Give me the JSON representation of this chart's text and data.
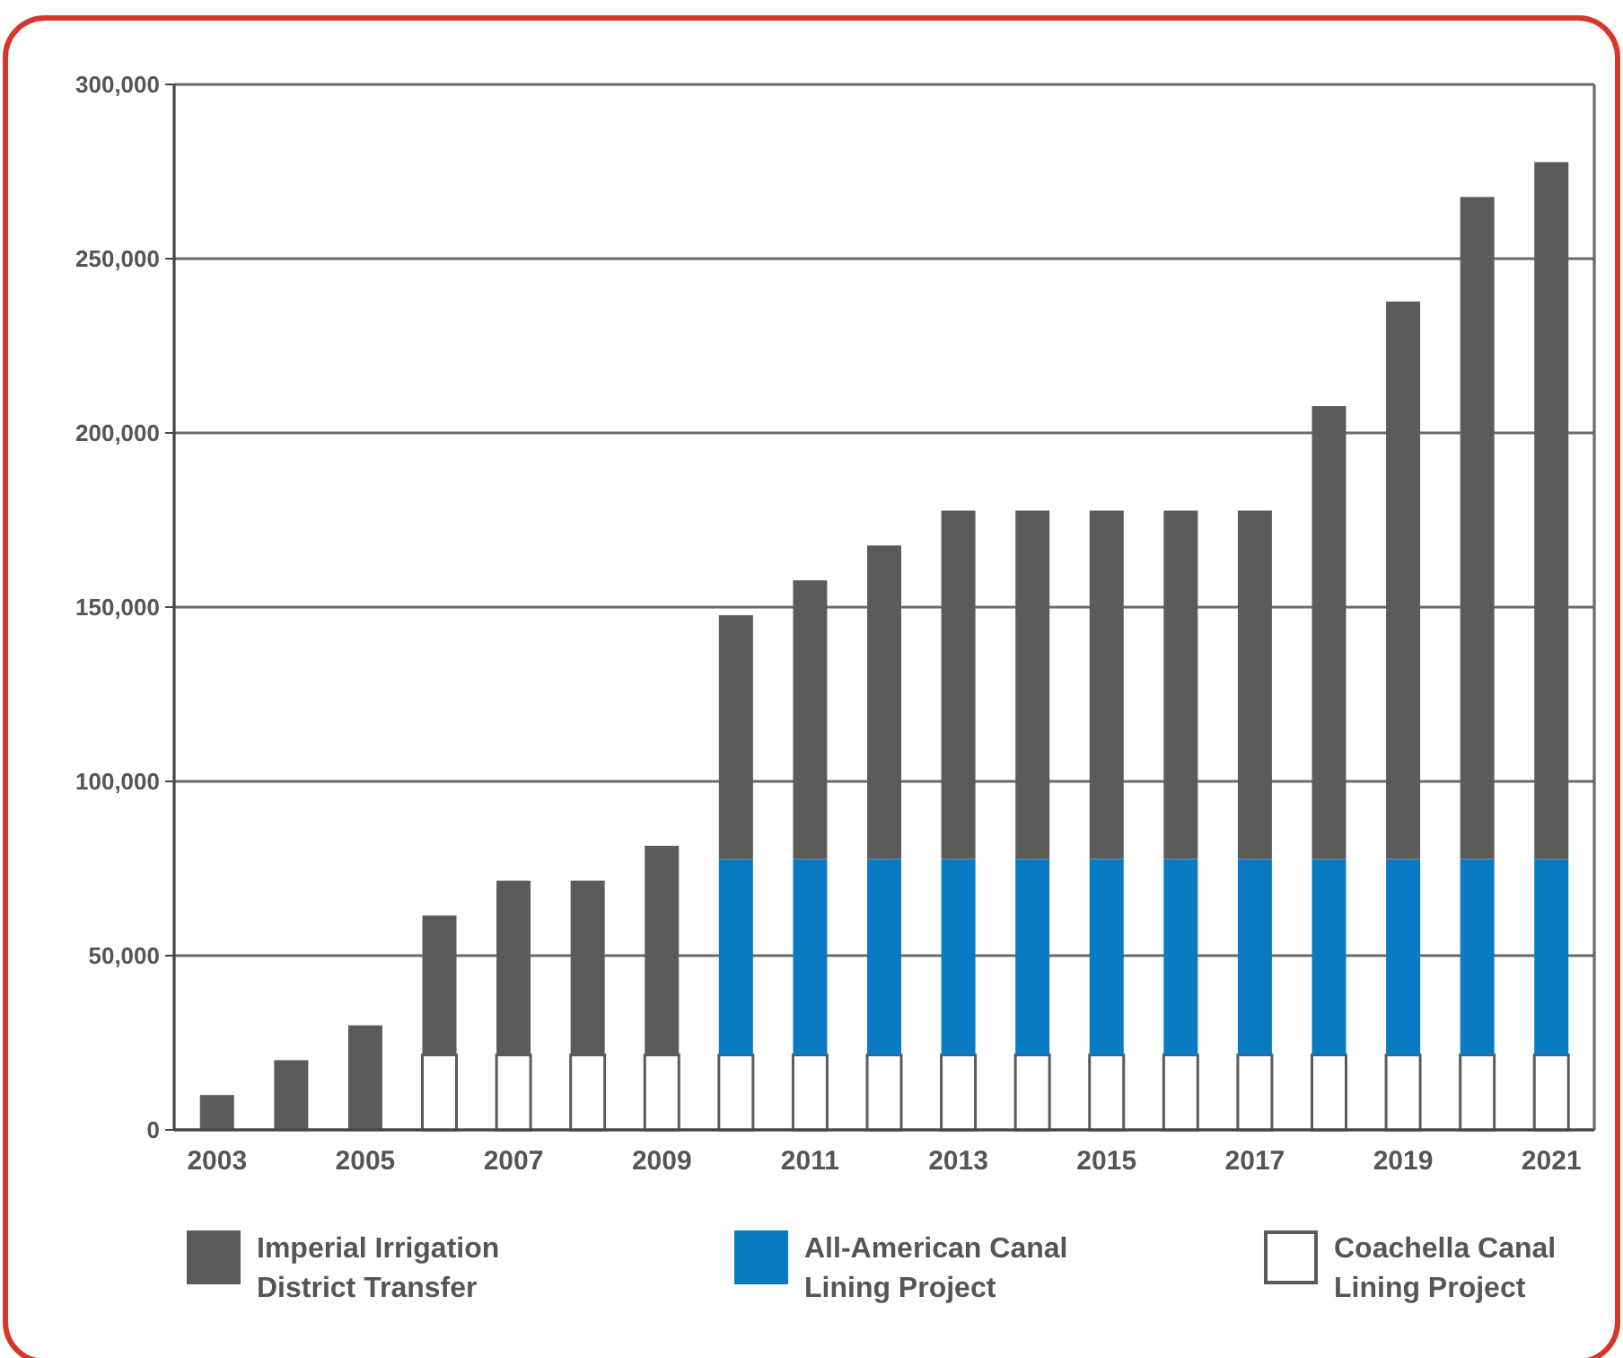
{
  "chart_data": {
    "type": "bar",
    "stacked": true,
    "categories": [
      "2003",
      null,
      "2005",
      null,
      "2007",
      null,
      "2009",
      null,
      "2011",
      null,
      "2013",
      null,
      "2015",
      null,
      "2017",
      null,
      "2019",
      null,
      "2021"
    ],
    "series": [
      {
        "name": "Coachella Canal Lining Project",
        "color": "#ffffff",
        "values": [
          null,
          null,
          null,
          21500,
          21500,
          21500,
          21500,
          21500,
          21500,
          21500,
          21500,
          21500,
          21500,
          21500,
          21500,
          21500,
          21500,
          21500,
          21500
        ]
      },
      {
        "name": "All-American Canal Lining Project",
        "color": "#0a7bc2",
        "values": [
          null,
          null,
          null,
          null,
          null,
          null,
          null,
          56200,
          56200,
          56200,
          56200,
          56200,
          56200,
          56200,
          56200,
          56200,
          56200,
          56200,
          56200
        ]
      },
      {
        "name": "Imperial Irrigation District Transfer",
        "color": "#5b5b5b",
        "values": [
          10000,
          20000,
          30000,
          40000,
          50000,
          50000,
          60000,
          70000,
          80000,
          90000,
          100000,
          100000,
          100000,
          100000,
          100000,
          130000,
          160000,
          190000,
          200000
        ]
      }
    ],
    "ylim": [
      0,
      300000
    ],
    "yticks": [
      {
        "value": 0,
        "label": "0"
      },
      {
        "value": 50000,
        "label": "50,000"
      },
      {
        "value": 100000,
        "label": "100,000"
      },
      {
        "value": 150000,
        "label": "150,000"
      },
      {
        "value": 200000,
        "label": "200,000"
      },
      {
        "value": 250000,
        "label": "250,000"
      },
      {
        "value": 300000,
        "label": "300,000"
      }
    ],
    "grid": "y",
    "legend": "bottom"
  }
}
